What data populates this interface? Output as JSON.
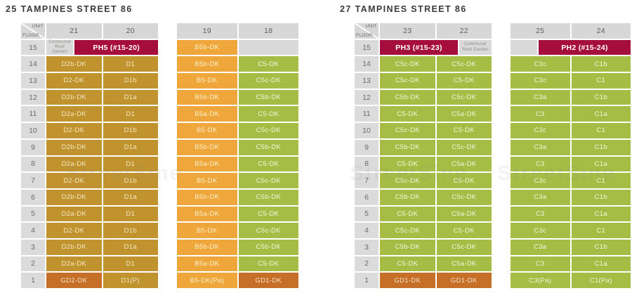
{
  "page": {
    "watermark": "StreetSine"
  },
  "colors": {
    "gold": "#c0932f",
    "orange": "#efa73b",
    "green": "#a5bc45",
    "penthouse_red": "#a50e3c",
    "ground_orange": "#c66f28",
    "header_gray": "#d7d7d7",
    "floor_gray": "#dbdbdb",
    "empty_gray": "#d9d9d9"
  },
  "buildings": [
    {
      "title": "25 TAMPINES STREET 86",
      "corner_top": "UNIT",
      "corner_bottom": "FLOOR",
      "tables": [
        {
          "show_floor_column": true,
          "stacks": [
            "21",
            "20"
          ],
          "rows": [
            {
              "floor": "15",
              "cells": [
                {
                  "t": "Communal Roof Garden",
                  "c": "communal",
                  "w": 0.45
                },
                {
                  "t": "PH5 (#15-20)",
                  "c": "ph",
                  "w": 1.55
                }
              ]
            },
            {
              "floor": "14",
              "cells": [
                {
                  "t": "D2b-DK",
                  "c": "gold"
                },
                {
                  "t": "D1",
                  "c": "gold"
                }
              ]
            },
            {
              "floor": "13",
              "cells": [
                {
                  "t": "D2-DK",
                  "c": "gold"
                },
                {
                  "t": "D1b",
                  "c": "gold"
                }
              ]
            },
            {
              "floor": "12",
              "cells": [
                {
                  "t": "D2b-DK",
                  "c": "gold"
                },
                {
                  "t": "D1a",
                  "c": "gold"
                }
              ]
            },
            {
              "floor": "11",
              "cells": [
                {
                  "t": "D2a-DK",
                  "c": "gold"
                },
                {
                  "t": "D1",
                  "c": "gold"
                }
              ]
            },
            {
              "floor": "10",
              "cells": [
                {
                  "t": "D2-DK",
                  "c": "gold"
                },
                {
                  "t": "D1b",
                  "c": "gold"
                }
              ]
            },
            {
              "floor": "9",
              "cells": [
                {
                  "t": "D2b-DK",
                  "c": "gold"
                },
                {
                  "t": "D1a",
                  "c": "gold"
                }
              ]
            },
            {
              "floor": "8",
              "cells": [
                {
                  "t": "D2a-DK",
                  "c": "gold"
                },
                {
                  "t": "D1",
                  "c": "gold"
                }
              ]
            },
            {
              "floor": "7",
              "cells": [
                {
                  "t": "D2-DK",
                  "c": "gold"
                },
                {
                  "t": "D1b",
                  "c": "gold"
                }
              ]
            },
            {
              "floor": "6",
              "cells": [
                {
                  "t": "D2b-DK",
                  "c": "gold"
                },
                {
                  "t": "D1a",
                  "c": "gold"
                }
              ]
            },
            {
              "floor": "5",
              "cells": [
                {
                  "t": "D2a-DK",
                  "c": "gold"
                },
                {
                  "t": "D1",
                  "c": "gold"
                }
              ]
            },
            {
              "floor": "4",
              "cells": [
                {
                  "t": "D2-DK",
                  "c": "gold"
                },
                {
                  "t": "D1b",
                  "c": "gold"
                }
              ]
            },
            {
              "floor": "3",
              "cells": [
                {
                  "t": "D2b-DK",
                  "c": "gold"
                },
                {
                  "t": "D1a",
                  "c": "gold"
                }
              ]
            },
            {
              "floor": "2",
              "cells": [
                {
                  "t": "D2a-DK",
                  "c": "gold"
                },
                {
                  "t": "D1",
                  "c": "gold"
                }
              ]
            },
            {
              "floor": "1",
              "cells": [
                {
                  "t": "GD2-DK",
                  "c": "ground"
                },
                {
                  "t": "D1(P)",
                  "c": "gold"
                }
              ]
            }
          ]
        },
        {
          "show_floor_column": false,
          "stacks": [
            "19",
            "18"
          ],
          "rows": [
            {
              "floor": "15",
              "cells": [
                {
                  "t": "B5b-DK",
                  "c": "orange"
                },
                {
                  "t": "",
                  "c": "empty"
                }
              ]
            },
            {
              "floor": "14",
              "cells": [
                {
                  "t": "B5b-DK",
                  "c": "orange"
                },
                {
                  "t": "C5-DK",
                  "c": "green"
                }
              ]
            },
            {
              "floor": "13",
              "cells": [
                {
                  "t": "B5-DK",
                  "c": "orange"
                },
                {
                  "t": "C5c-DK",
                  "c": "green"
                }
              ]
            },
            {
              "floor": "12",
              "cells": [
                {
                  "t": "B5b-DK",
                  "c": "orange"
                },
                {
                  "t": "C5b-DK",
                  "c": "green"
                }
              ]
            },
            {
              "floor": "11",
              "cells": [
                {
                  "t": "B5a-DK",
                  "c": "orange"
                },
                {
                  "t": "C5-DK",
                  "c": "green"
                }
              ]
            },
            {
              "floor": "10",
              "cells": [
                {
                  "t": "B5-DK",
                  "c": "orange"
                },
                {
                  "t": "C5c-DK",
                  "c": "green"
                }
              ]
            },
            {
              "floor": "9",
              "cells": [
                {
                  "t": "B5b-DK",
                  "c": "orange"
                },
                {
                  "t": "C5b-DK",
                  "c": "green"
                }
              ]
            },
            {
              "floor": "8",
              "cells": [
                {
                  "t": "B5a-DK",
                  "c": "orange"
                },
                {
                  "t": "C5-DK",
                  "c": "green"
                }
              ]
            },
            {
              "floor": "7",
              "cells": [
                {
                  "t": "B5-DK",
                  "c": "orange"
                },
                {
                  "t": "C5c-DK",
                  "c": "green"
                }
              ]
            },
            {
              "floor": "6",
              "cells": [
                {
                  "t": "B5b-DK",
                  "c": "orange"
                },
                {
                  "t": "C5b-DK",
                  "c": "green"
                }
              ]
            },
            {
              "floor": "5",
              "cells": [
                {
                  "t": "B5a-DK",
                  "c": "orange"
                },
                {
                  "t": "C5-DK",
                  "c": "green"
                }
              ]
            },
            {
              "floor": "4",
              "cells": [
                {
                  "t": "B5-DK",
                  "c": "orange"
                },
                {
                  "t": "C5c-DK",
                  "c": "green"
                }
              ]
            },
            {
              "floor": "3",
              "cells": [
                {
                  "t": "B5b-DK",
                  "c": "orange"
                },
                {
                  "t": "C5b-DK",
                  "c": "green"
                }
              ]
            },
            {
              "floor": "2",
              "cells": [
                {
                  "t": "B5a-DK",
                  "c": "orange"
                },
                {
                  "t": "C5-DK",
                  "c": "green"
                }
              ]
            },
            {
              "floor": "1",
              "cells": [
                {
                  "t": "B5-DK(Pa)",
                  "c": "orange"
                },
                {
                  "t": "GD1-DK",
                  "c": "ground"
                }
              ]
            }
          ]
        }
      ]
    },
    {
      "title": "27 TAMPINES STREET 86",
      "corner_top": "UNIT",
      "corner_bottom": "FLOOR",
      "tables": [
        {
          "show_floor_column": true,
          "stacks": [
            "23",
            "22"
          ],
          "rows": [
            {
              "floor": "15",
              "cells": [
                {
                  "t": "PH3 (#15-23)",
                  "c": "ph",
                  "w": 1.45
                },
                {
                  "t": "Communal Roof Garden",
                  "c": "communal",
                  "w": 0.55
                }
              ]
            },
            {
              "floor": "14",
              "cells": [
                {
                  "t": "C5c-DK",
                  "c": "green"
                },
                {
                  "t": "C5c-DK",
                  "c": "green"
                }
              ]
            },
            {
              "floor": "13",
              "cells": [
                {
                  "t": "C5c-DK",
                  "c": "green"
                },
                {
                  "t": "C5-DK",
                  "c": "green"
                }
              ]
            },
            {
              "floor": "12",
              "cells": [
                {
                  "t": "C5b-DK",
                  "c": "green"
                },
                {
                  "t": "C5c-DK",
                  "c": "green"
                }
              ]
            },
            {
              "floor": "11",
              "cells": [
                {
                  "t": "C5-DK",
                  "c": "green"
                },
                {
                  "t": "C5a-DK",
                  "c": "green"
                }
              ]
            },
            {
              "floor": "10",
              "cells": [
                {
                  "t": "C5c-DK",
                  "c": "green"
                },
                {
                  "t": "C5-DK",
                  "c": "green"
                }
              ]
            },
            {
              "floor": "9",
              "cells": [
                {
                  "t": "C5b-DK",
                  "c": "green"
                },
                {
                  "t": "C5c-DK",
                  "c": "green"
                }
              ]
            },
            {
              "floor": "8",
              "cells": [
                {
                  "t": "C5-DK",
                  "c": "green"
                },
                {
                  "t": "C5a-DK",
                  "c": "green"
                }
              ]
            },
            {
              "floor": "7",
              "cells": [
                {
                  "t": "C5c-DK",
                  "c": "green"
                },
                {
                  "t": "C5-DK",
                  "c": "green"
                }
              ]
            },
            {
              "floor": "6",
              "cells": [
                {
                  "t": "C5b-DK",
                  "c": "green"
                },
                {
                  "t": "C5c-DK",
                  "c": "green"
                }
              ]
            },
            {
              "floor": "5",
              "cells": [
                {
                  "t": "C5-DK",
                  "c": "green"
                },
                {
                  "t": "C5a-DK",
                  "c": "green"
                }
              ]
            },
            {
              "floor": "4",
              "cells": [
                {
                  "t": "C5c-DK",
                  "c": "green"
                },
                {
                  "t": "C5-DK",
                  "c": "green"
                }
              ]
            },
            {
              "floor": "3",
              "cells": [
                {
                  "t": "C5b-DK",
                  "c": "green"
                },
                {
                  "t": "C5c-DK",
                  "c": "green"
                }
              ]
            },
            {
              "floor": "2",
              "cells": [
                {
                  "t": "C5-DK",
                  "c": "green"
                },
                {
                  "t": "C5a-DK",
                  "c": "green"
                }
              ]
            },
            {
              "floor": "1",
              "cells": [
                {
                  "t": "GD1-DK",
                  "c": "ground"
                },
                {
                  "t": "GD1-DK",
                  "c": "ground"
                }
              ]
            }
          ]
        },
        {
          "show_floor_column": false,
          "stacks": [
            "25",
            "24"
          ],
          "rows": [
            {
              "floor": "15",
              "cells": [
                {
                  "t": "",
                  "c": "empty",
                  "w": 0.45
                },
                {
                  "t": "PH2 (#15-24)",
                  "c": "ph",
                  "w": 1.55
                }
              ]
            },
            {
              "floor": "14",
              "cells": [
                {
                  "t": "C3c",
                  "c": "green"
                },
                {
                  "t": "C1b",
                  "c": "green"
                }
              ]
            },
            {
              "floor": "13",
              "cells": [
                {
                  "t": "C3c",
                  "c": "green"
                },
                {
                  "t": "C1",
                  "c": "green"
                }
              ]
            },
            {
              "floor": "12",
              "cells": [
                {
                  "t": "C3a",
                  "c": "green"
                },
                {
                  "t": "C1b",
                  "c": "green"
                }
              ]
            },
            {
              "floor": "11",
              "cells": [
                {
                  "t": "C3",
                  "c": "green"
                },
                {
                  "t": "C1a",
                  "c": "green"
                }
              ]
            },
            {
              "floor": "10",
              "cells": [
                {
                  "t": "C3c",
                  "c": "green"
                },
                {
                  "t": "C1",
                  "c": "green"
                }
              ]
            },
            {
              "floor": "9",
              "cells": [
                {
                  "t": "C3a",
                  "c": "green"
                },
                {
                  "t": "C1b",
                  "c": "green"
                }
              ]
            },
            {
              "floor": "8",
              "cells": [
                {
                  "t": "C3",
                  "c": "green"
                },
                {
                  "t": "C1a",
                  "c": "green"
                }
              ]
            },
            {
              "floor": "7",
              "cells": [
                {
                  "t": "C3c",
                  "c": "green"
                },
                {
                  "t": "C1",
                  "c": "green"
                }
              ]
            },
            {
              "floor": "6",
              "cells": [
                {
                  "t": "C3a",
                  "c": "green"
                },
                {
                  "t": "C1b",
                  "c": "green"
                }
              ]
            },
            {
              "floor": "5",
              "cells": [
                {
                  "t": "C3",
                  "c": "green"
                },
                {
                  "t": "C1a",
                  "c": "green"
                }
              ]
            },
            {
              "floor": "4",
              "cells": [
                {
                  "t": "C3c",
                  "c": "green"
                },
                {
                  "t": "C1",
                  "c": "green"
                }
              ]
            },
            {
              "floor": "3",
              "cells": [
                {
                  "t": "C3a",
                  "c": "green"
                },
                {
                  "t": "C1b",
                  "c": "green"
                }
              ]
            },
            {
              "floor": "2",
              "cells": [
                {
                  "t": "C3",
                  "c": "green"
                },
                {
                  "t": "C1a",
                  "c": "green"
                }
              ]
            },
            {
              "floor": "1",
              "cells": [
                {
                  "t": "C3(Pa)",
                  "c": "green"
                },
                {
                  "t": "C1(Pa)",
                  "c": "green"
                }
              ]
            }
          ]
        }
      ]
    }
  ]
}
